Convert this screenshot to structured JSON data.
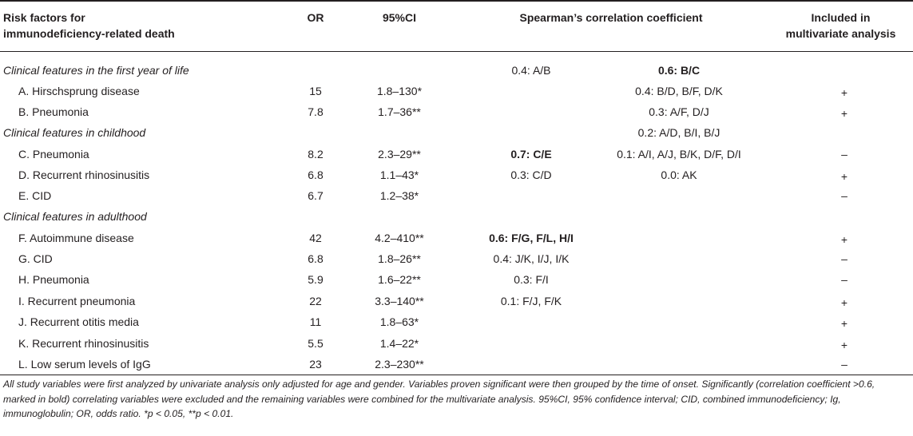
{
  "header": {
    "risk_factors_line1": "Risk factors for",
    "risk_factors_line2": "immunodeficiency-related death",
    "or": "OR",
    "ci": "95%CI",
    "spearman": "Spearman’s correlation coefficient",
    "included_line1": "Included in",
    "included_line2": "multivariate analysis"
  },
  "sections": {
    "first_year": "Clinical features in the first year of life",
    "childhood": "Clinical features in childhood",
    "adulthood": "Clinical features in adulthood"
  },
  "rows": [
    {
      "factor": "A. Hirschsprung disease",
      "or": "15",
      "ci": "1.8–130*",
      "mv": "+"
    },
    {
      "factor": "B. Pneumonia",
      "or": "7.8",
      "ci": "1.7–36**",
      "mv": "+"
    },
    {
      "factor": "C. Pneumonia",
      "or": "8.2",
      "ci": "2.3–29**",
      "mv": "–"
    },
    {
      "factor": "D. Recurrent rhinosinusitis",
      "or": "6.8",
      "ci": "1.1–43*",
      "mv": "+"
    },
    {
      "factor": "E. CID",
      "or": "6.7",
      "ci": "1.2–38*",
      "mv": "–"
    },
    {
      "factor": "F. Autoimmune disease",
      "or": "42",
      "ci": "4.2–410**",
      "mv": "+"
    },
    {
      "factor": "G. CID",
      "or": "6.8",
      "ci": "1.8–26**",
      "mv": "–"
    },
    {
      "factor": "H. Pneumonia",
      "or": "5.9",
      "ci": "1.6–22**",
      "mv": "–"
    },
    {
      "factor": "I. Recurrent pneumonia",
      "or": "22",
      "ci": "3.3–140**",
      "mv": "+"
    },
    {
      "factor": "J. Recurrent otitis media",
      "or": "11",
      "ci": "1.8–63*",
      "mv": "+"
    },
    {
      "factor": "K. Recurrent rhinosinusitis",
      "or": "5.5",
      "ci": "1.4–22*",
      "mv": "+"
    },
    {
      "factor": "L. Low serum levels of IgG",
      "or": "23",
      "ci": "2.3–230**",
      "mv": "–"
    }
  ],
  "spearman_left": [
    {
      "text": "0.4: A/B",
      "bold": false
    },
    {
      "text": "0.7: C/E",
      "bold": true
    },
    {
      "text": "0.3: C/D",
      "bold": false
    },
    {
      "text": "0.6: F/G, F/L, H/I",
      "bold": true
    },
    {
      "text": "0.4: J/K, I/J, I/K",
      "bold": false
    },
    {
      "text": "0.3: F/I",
      "bold": false
    },
    {
      "text": "0.1: F/J, F/K",
      "bold": false
    }
  ],
  "spearman_right": [
    {
      "text": "0.6: B/C",
      "bold": true
    },
    {
      "text": "0.4: B/D, B/F, D/K",
      "bold": false
    },
    {
      "text": "0.3: A/F, D/J",
      "bold": false
    },
    {
      "text": "0.2: A/D, B/I, B/J",
      "bold": false
    },
    {
      "text": "0.1: A/I, A/J, B/K, D/F, D/I",
      "bold": false
    },
    {
      "text": "0.0: AK",
      "bold": false
    }
  ],
  "footnote": {
    "text": "All study variables were first analyzed by univariate analysis only adjusted for age and gender. Variables proven significant were then grouped by the time of onset. Significantly (correlation coefficient >0.6, marked in bold) correlating variables were excluded and the remaining variables were combined for the multivariate analysis. 95%CI, 95% confidence interval; CID, combined immunodeficiency; Ig, immunoglobulin; OR, odds ratio. *p < 0.05, **p < 0.01."
  }
}
